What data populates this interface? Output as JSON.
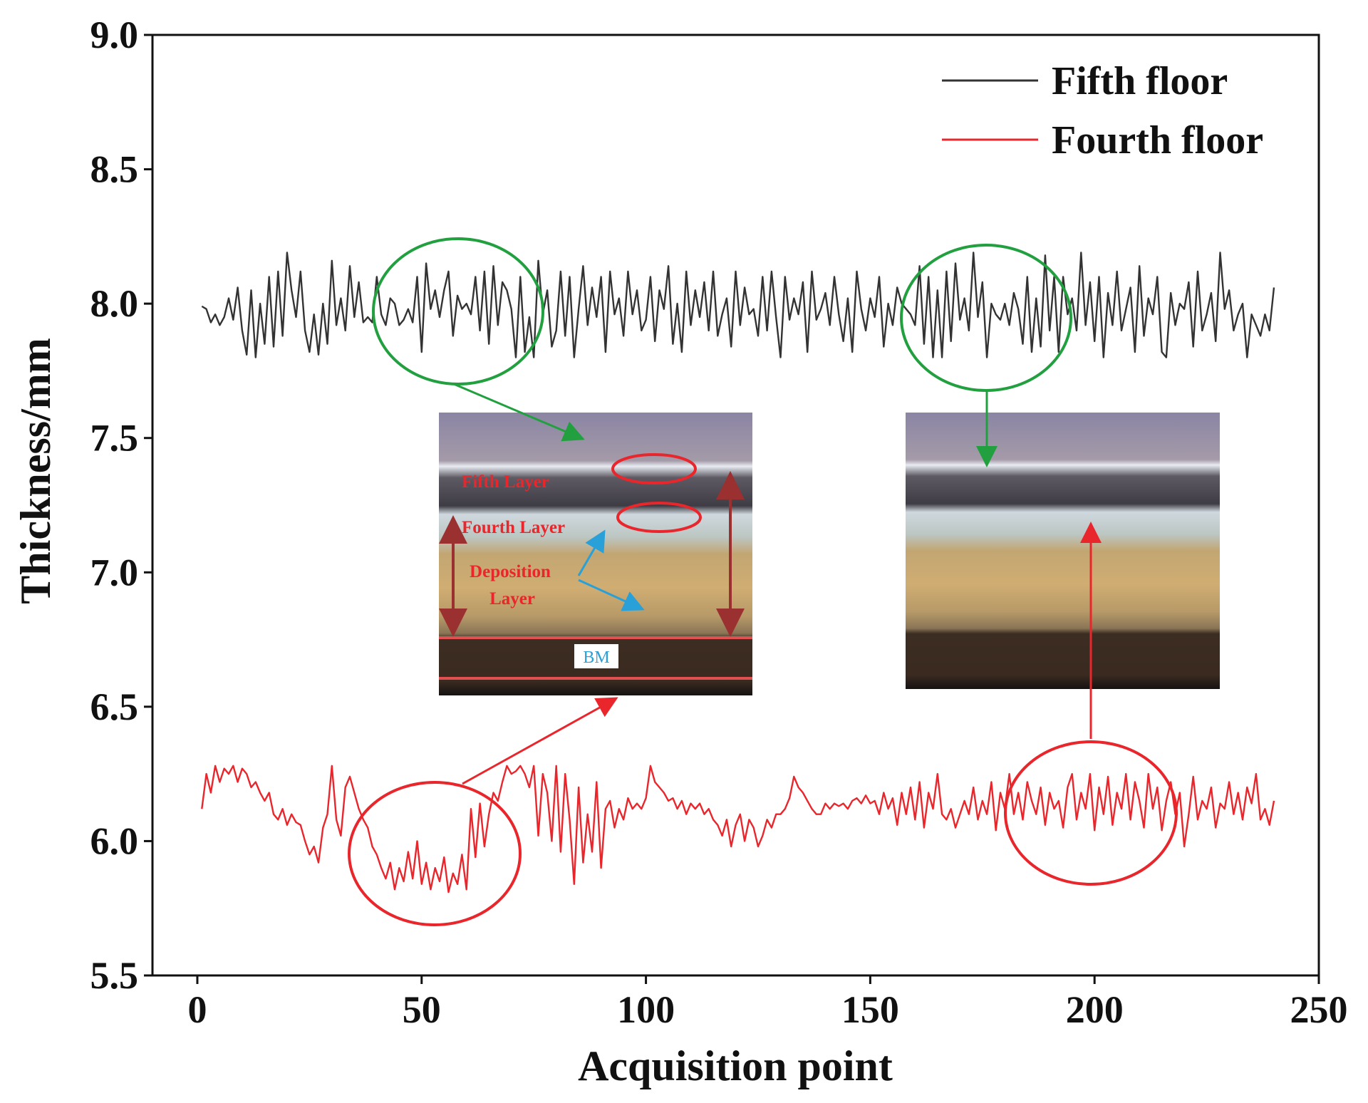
{
  "chart_data": {
    "type": "line",
    "xlabel": "Acquisition point",
    "ylabel": "Thickness/mm",
    "xlim": [
      -10,
      250
    ],
    "xticks": [
      0,
      50,
      100,
      150,
      200,
      250
    ],
    "ylim": [
      5.5,
      9.0
    ],
    "yticks": [
      {
        "value": 5.5,
        "label": "5.5"
      },
      {
        "value": 6,
        "label": "6.0"
      },
      {
        "value": 6.5,
        "label": "6.5"
      },
      {
        "value": 7,
        "label": "7.0"
      },
      {
        "value": 7.5,
        "label": "7.5"
      },
      {
        "value": 8,
        "label": "8.0"
      },
      {
        "value": 8.5,
        "label": "8.5"
      },
      {
        "value": 9,
        "label": "9.0"
      }
    ],
    "legend": "upper right",
    "annotations": [
      "Fifth Layer",
      "Fourth Layer",
      "Deposition",
      "Layer",
      "BM"
    ],
    "x": [
      1,
      2,
      3,
      4,
      5,
      6,
      7,
      8,
      9,
      10,
      11,
      12,
      13,
      14,
      15,
      16,
      17,
      18,
      19,
      20,
      21,
      22,
      23,
      24,
      25,
      26,
      27,
      28,
      29,
      30,
      31,
      32,
      33,
      34,
      35,
      36,
      37,
      38,
      39,
      40,
      41,
      42,
      43,
      44,
      45,
      46,
      47,
      48,
      49,
      50,
      51,
      52,
      53,
      54,
      55,
      56,
      57,
      58,
      59,
      60,
      61,
      62,
      63,
      64,
      65,
      66,
      67,
      68,
      69,
      70,
      71,
      72,
      73,
      74,
      75,
      76,
      77,
      78,
      79,
      80,
      81,
      82,
      83,
      84,
      85,
      86,
      87,
      88,
      89,
      90,
      91,
      92,
      93,
      94,
      95,
      96,
      97,
      98,
      99,
      100,
      101,
      102,
      103,
      104,
      105,
      106,
      107,
      108,
      109,
      110,
      111,
      112,
      113,
      114,
      115,
      116,
      117,
      118,
      119,
      120,
      121,
      122,
      123,
      124,
      125,
      126,
      127,
      128,
      129,
      130,
      131,
      132,
      133,
      134,
      135,
      136,
      137,
      138,
      139,
      140,
      141,
      142,
      143,
      144,
      145,
      146,
      147,
      148,
      149,
      150,
      151,
      152,
      153,
      154,
      155,
      156,
      157,
      158,
      159,
      160,
      161,
      162,
      163,
      164,
      165,
      166,
      167,
      168,
      169,
      170,
      171,
      172,
      173,
      174,
      175,
      176,
      177,
      178,
      179,
      180,
      181,
      182,
      183,
      184,
      185,
      186,
      187,
      188,
      189,
      190,
      191,
      192,
      193,
      194,
      195,
      196,
      197,
      198,
      199,
      200,
      201,
      202,
      203,
      204,
      205,
      206,
      207,
      208,
      209,
      210,
      211,
      212,
      213,
      214,
      215,
      216,
      217,
      218,
      219,
      220,
      221,
      222,
      223,
      224,
      225,
      226,
      227,
      228,
      229,
      230,
      231,
      232,
      233,
      234,
      235,
      236,
      237,
      238,
      239,
      240
    ],
    "series": [
      {
        "name": "Fifth floor",
        "color": "#333333",
        "values": [
          7.99,
          7.98,
          7.93,
          7.96,
          7.92,
          7.95,
          8.02,
          7.94,
          8.06,
          7.9,
          7.81,
          8.05,
          7.8,
          8.0,
          7.85,
          8.1,
          7.84,
          8.12,
          7.88,
          8.19,
          8.05,
          7.95,
          8.12,
          7.9,
          7.82,
          7.96,
          7.81,
          8.0,
          7.85,
          8.16,
          7.92,
          8.02,
          7.9,
          8.14,
          7.95,
          8.08,
          7.93,
          7.95,
          7.93,
          8.1,
          7.96,
          7.92,
          8.02,
          8.0,
          7.92,
          7.94,
          7.98,
          7.93,
          8.1,
          7.82,
          8.15,
          7.98,
          8.05,
          7.95,
          8.05,
          8.12,
          7.88,
          8.03,
          7.98,
          8.0,
          7.96,
          8.1,
          7.9,
          8.12,
          7.85,
          8.14,
          7.92,
          8.08,
          8.05,
          7.98,
          7.8,
          8.1,
          7.82,
          7.95,
          7.8,
          8.16,
          7.96,
          8.05,
          7.84,
          7.9,
          8.12,
          7.88,
          8.1,
          7.8,
          7.98,
          8.14,
          7.92,
          8.06,
          7.95,
          8.1,
          7.82,
          8.12,
          7.96,
          8.02,
          7.88,
          8.12,
          7.96,
          8.05,
          7.9,
          7.94,
          8.1,
          7.86,
          8.05,
          7.98,
          8.14,
          7.85,
          8.0,
          7.82,
          8.12,
          7.92,
          8.05,
          7.95,
          8.08,
          7.9,
          8.12,
          7.88,
          7.96,
          8.02,
          7.84,
          8.12,
          7.92,
          8.06,
          7.96,
          7.98,
          7.88,
          8.1,
          7.9,
          8.12,
          7.95,
          7.8,
          8.1,
          7.94,
          8.02,
          7.96,
          8.08,
          7.82,
          8.12,
          7.94,
          7.98,
          8.04,
          7.92,
          8.1,
          7.96,
          7.86,
          8.02,
          7.82,
          8.12,
          7.98,
          7.9,
          8.02,
          7.95,
          8.1,
          7.84,
          8.0,
          7.92,
          8.06,
          8.0,
          7.98,
          7.96,
          7.92,
          8.14,
          7.85,
          8.1,
          7.8,
          8.05,
          7.8,
          8.12,
          7.86,
          8.15,
          7.94,
          8.02,
          7.9,
          8.19,
          7.95,
          8.08,
          7.8,
          8.0,
          7.96,
          7.94,
          8.0,
          7.92,
          8.04,
          7.98,
          7.85,
          8.1,
          7.82,
          8.02,
          7.84,
          8.18,
          7.9,
          8.1,
          7.82,
          8.1,
          7.96,
          8.02,
          7.9,
          8.19,
          7.92,
          8.08,
          7.86,
          8.1,
          7.8,
          8.04,
          7.92,
          8.12,
          7.9,
          7.98,
          8.06,
          7.82,
          8.14,
          7.88,
          8.02,
          7.96,
          8.1,
          7.82,
          7.8,
          8.04,
          7.92,
          8.0,
          7.98,
          8.08,
          7.84,
          8.12,
          7.9,
          7.96,
          8.04,
          7.86,
          8.19,
          7.98,
          8.05,
          7.9,
          7.96,
          8.0,
          7.8,
          7.96,
          7.92,
          7.88,
          7.96,
          7.9,
          8.06
        ]
      },
      {
        "name": "Fourth floor",
        "color": "#e8262b",
        "values": [
          6.12,
          6.25,
          6.18,
          6.28,
          6.22,
          6.27,
          6.25,
          6.28,
          6.22,
          6.27,
          6.25,
          6.2,
          6.22,
          6.18,
          6.15,
          6.18,
          6.1,
          6.08,
          6.12,
          6.06,
          6.1,
          6.07,
          6.06,
          6.0,
          5.95,
          5.98,
          5.92,
          6.05,
          6.1,
          6.28,
          6.08,
          6.02,
          6.2,
          6.24,
          6.18,
          6.12,
          6.08,
          6.05,
          5.98,
          5.95,
          5.9,
          5.86,
          5.92,
          5.82,
          5.9,
          5.85,
          5.96,
          5.86,
          6.0,
          5.84,
          5.92,
          5.82,
          5.9,
          5.85,
          5.94,
          5.81,
          5.88,
          5.84,
          5.95,
          5.82,
          6.12,
          5.94,
          6.14,
          5.98,
          6.1,
          6.18,
          6.15,
          6.22,
          6.28,
          6.25,
          6.26,
          6.28,
          6.25,
          6.2,
          6.28,
          6.02,
          6.25,
          6.18,
          6.0,
          6.28,
          5.96,
          6.25,
          6.08,
          5.84,
          6.2,
          5.92,
          6.1,
          5.96,
          6.22,
          5.9,
          6.12,
          6.15,
          6.05,
          6.12,
          6.08,
          6.16,
          6.12,
          6.14,
          6.12,
          6.16,
          6.28,
          6.22,
          6.2,
          6.18,
          6.15,
          6.16,
          6.12,
          6.15,
          6.1,
          6.14,
          6.12,
          6.14,
          6.1,
          6.12,
          6.08,
          6.06,
          6.02,
          6.08,
          5.98,
          6.06,
          6.1,
          6.0,
          6.08,
          6.05,
          5.98,
          6.02,
          6.08,
          6.05,
          6.1,
          6.1,
          6.12,
          6.16,
          6.24,
          6.2,
          6.18,
          6.15,
          6.12,
          6.1,
          6.1,
          6.14,
          6.12,
          6.14,
          6.13,
          6.14,
          6.12,
          6.15,
          6.16,
          6.14,
          6.17,
          6.14,
          6.15,
          6.1,
          6.18,
          6.12,
          6.16,
          6.06,
          6.18,
          6.1,
          6.2,
          6.08,
          6.22,
          6.05,
          6.18,
          6.12,
          6.25,
          6.1,
          6.08,
          6.12,
          6.05,
          6.1,
          6.15,
          6.1,
          6.2,
          6.08,
          6.15,
          6.1,
          6.22,
          6.04,
          6.18,
          6.12,
          6.25,
          6.1,
          6.18,
          6.08,
          6.22,
          6.15,
          6.1,
          6.2,
          6.06,
          6.18,
          6.12,
          6.15,
          6.05,
          6.2,
          6.25,
          6.08,
          6.18,
          6.12,
          6.25,
          6.04,
          6.2,
          6.1,
          6.24,
          6.06,
          6.18,
          6.12,
          6.25,
          6.08,
          6.22,
          6.15,
          6.05,
          6.25,
          6.12,
          6.2,
          6.04,
          6.15,
          6.22,
          6.1,
          6.18,
          5.98,
          6.1,
          6.24,
          6.08,
          6.15,
          6.12,
          6.2,
          6.05,
          6.14,
          6.12,
          6.22,
          6.1,
          6.18,
          6.08,
          6.2,
          6.14,
          6.25,
          6.08,
          6.12,
          6.06,
          6.15
        ]
      }
    ]
  }
}
